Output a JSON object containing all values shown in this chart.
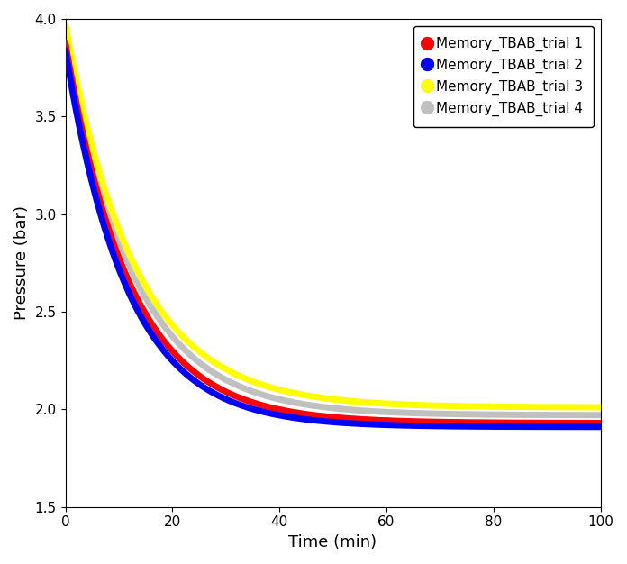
{
  "title": "",
  "xlabel": "Time (min)",
  "ylabel": "Pressure (bar)",
  "xlim": [
    0,
    100
  ],
  "ylim": [
    1.5,
    4.0
  ],
  "yticks": [
    1.5,
    2.0,
    2.5,
    3.0,
    3.5,
    4.0
  ],
  "xticks": [
    0,
    20,
    40,
    60,
    80,
    100
  ],
  "series": [
    {
      "label": "Memory_TBAB_trial 1",
      "color": "red",
      "p0": 3.88,
      "p_inf": 1.93,
      "tau": 12.0,
      "zorder": 3
    },
    {
      "label": "Memory_TBAB_trial 2",
      "color": "blue",
      "p0": 3.84,
      "p_inf": 1.91,
      "tau": 11.5,
      "zorder": 4
    },
    {
      "label": "Memory_TBAB_trial 3",
      "color": "yellow",
      "p0": 3.97,
      "p_inf": 2.01,
      "tau": 13.0,
      "zorder": 2
    },
    {
      "label": "Memory_TBAB_trial 4",
      "color": "#c0c0c0",
      "p0": 3.97,
      "p_inf": 1.97,
      "tau": 12.5,
      "zorder": 1
    }
  ],
  "linewidth": 5.0,
  "legend_fontsize": 11,
  "axis_fontsize": 13,
  "tick_fontsize": 11,
  "figsize": [
    6.96,
    6.26
  ],
  "dpi": 100
}
